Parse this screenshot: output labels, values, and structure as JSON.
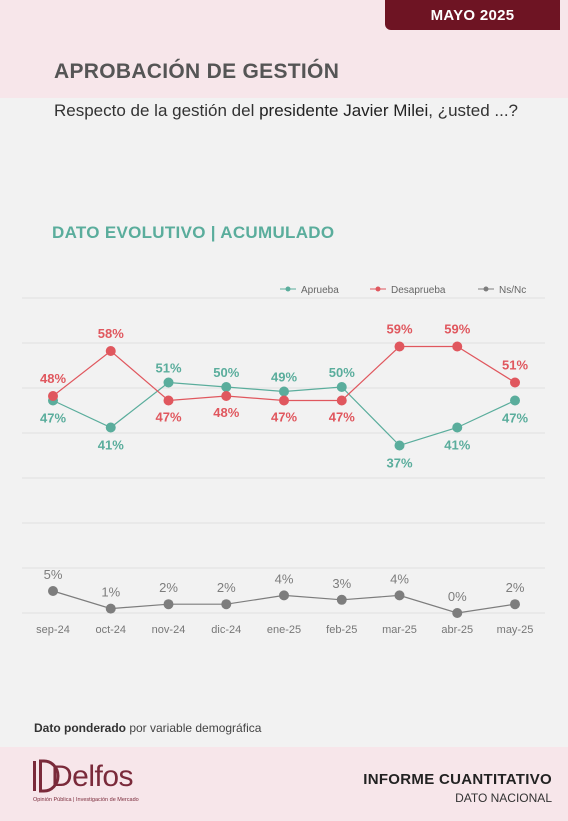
{
  "header": {
    "month_badge": "MAYO 2025",
    "title": "APROBACIÓN DE GESTIÓN"
  },
  "question": {
    "prefix": "Respecto de la gestión del ",
    "emphasis": "presidente Javier Milei",
    "suffix": ", ¿usted ...?"
  },
  "section": {
    "title_main": "DATO EVOLUTIVO",
    "divider": "|",
    "title_sub": "ACUMULADO"
  },
  "colors": {
    "approve": "#5aad9c",
    "disapprove": "#e0575e",
    "nsnc": "#7d7d7d",
    "brand": "#6e1423"
  },
  "chart_data": {
    "type": "line",
    "categories": [
      "sep-24",
      "oct-24",
      "nov-24",
      "dic-24",
      "ene-25",
      "feb-25",
      "mar-25",
      "abr-25",
      "may-25"
    ],
    "series": [
      {
        "name": "Aprueba",
        "values": [
          47,
          41,
          51,
          50,
          49,
          50,
          37,
          41,
          47
        ],
        "labels": [
          "47%",
          "41%",
          "51%",
          "50%",
          "49%",
          "50%",
          "37%",
          "41%",
          "47%"
        ]
      },
      {
        "name": "Desaprueba",
        "values": [
          48,
          58,
          47,
          48,
          47,
          47,
          59,
          59,
          51
        ],
        "labels": [
          "48%",
          "58%",
          "47%",
          "48%",
          "47%",
          "47%",
          "59%",
          "59%",
          "51%"
        ]
      },
      {
        "name": "Ns/Nc",
        "values": [
          5,
          1,
          2,
          2,
          4,
          3,
          4,
          0,
          2
        ],
        "labels": [
          "5%",
          "1%",
          "2%",
          "2%",
          "4%",
          "3%",
          "4%",
          "0%",
          "2%"
        ]
      }
    ],
    "ylim": [
      0,
      70
    ],
    "legend": "top-right",
    "grid": true
  },
  "footnote": {
    "bold": "Dato ponderado",
    "rest": " por variable demográfica"
  },
  "logo": {
    "word": "Delfos",
    "tagline": "Opinión Pública | Investigación de Mercado"
  },
  "report": {
    "title": "INFORME CUANTITATIVO",
    "subtitle": "DATO NACIONAL"
  }
}
